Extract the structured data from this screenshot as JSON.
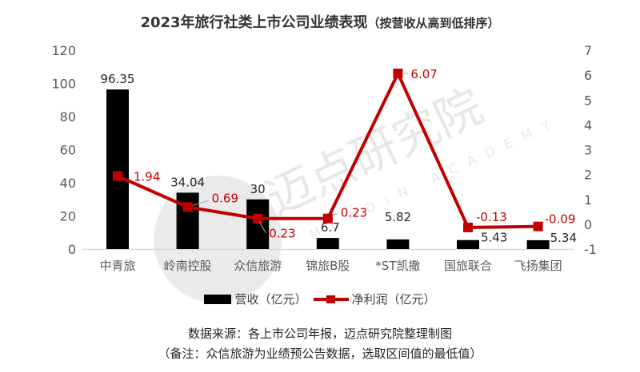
{
  "title": {
    "main": "2023年旅行社类上市公司业绩表现",
    "sub": "（按营收从高到低排序）"
  },
  "legend": {
    "revenue": "营收（亿元）",
    "profit": "净利润（亿元）"
  },
  "footer": {
    "source": "数据来源：各上市公司年报，迈点研究院整理制图",
    "note": "（备注：众信旅游为业绩预公告数据，选取区间值的最低值）"
  },
  "watermark": {
    "text": "迈点研究院",
    "subtext": "MEADIN ACADEMY"
  },
  "colors": {
    "bar": "#000000",
    "line": "#c00000",
    "axis_text": "#595959",
    "gridline": "#d9d9d9"
  },
  "chart_data": {
    "type": "bar+line",
    "title": "2023年旅行社类上市公司业绩表现（按营收从高到低排序）",
    "categories": [
      "中青旅",
      "岭南控股",
      "众信旅游",
      "锦旅B股",
      "*ST凯撒",
      "国旅联合",
      "飞扬集团"
    ],
    "series": [
      {
        "name": "营收（亿元）",
        "type": "bar",
        "axis": "left",
        "values": [
          96.35,
          34.04,
          30,
          6.7,
          5.82,
          5.43,
          5.34
        ],
        "labels": [
          "96.35",
          "34.04",
          "30",
          "6.7",
          "5.82",
          "5.43",
          "5.34"
        ]
      },
      {
        "name": "净利润（亿元）",
        "type": "line",
        "axis": "right",
        "values": [
          1.94,
          0.69,
          0.23,
          0.23,
          6.07,
          -0.13,
          -0.09
        ],
        "labels": [
          "1.94",
          "0.69",
          "0.23",
          "0.23",
          "6.07",
          "-0.13",
          "-0.09"
        ]
      }
    ],
    "left_axis": {
      "ylim": [
        0,
        120
      ],
      "ticks": [
        "0",
        "20",
        "40",
        "60",
        "80",
        "100",
        "120"
      ]
    },
    "right_axis": {
      "ylim": [
        -1,
        7
      ],
      "ticks": [
        "-1",
        "0",
        "1",
        "2",
        "3",
        "4",
        "5",
        "6",
        "7"
      ]
    },
    "legend_position": "bottom",
    "grid": false
  }
}
